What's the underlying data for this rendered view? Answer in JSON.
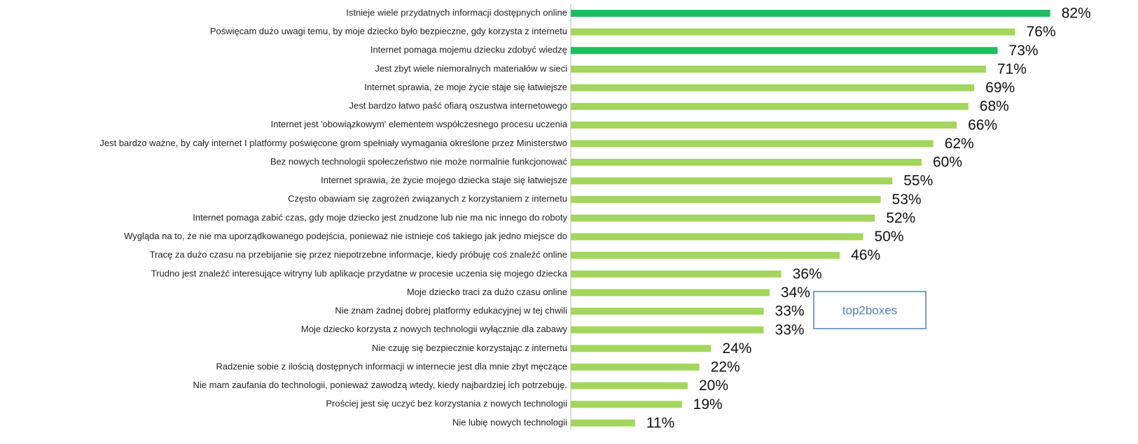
{
  "chart_data": {
    "type": "barh",
    "categories": [
      "Istnieje wiele przydatnych informacji dostępnych online",
      "Poświęcam dużo uwagi temu, by moje dziecko było bezpieczne, gdy korzysta z internetu",
      "Internet pomaga mojemu dziecku zdobyć wiedzę",
      "Jest zbyt wiele niemoralnych materiałów w sieci",
      "Internet sprawia, że moje życie staje się łatwiejsze",
      "Jest bardzo łatwo paść ofiarą oszustwa internetowego",
      "Internet jest 'obowiązkowym' elementem współczesnego procesu uczenia",
      "Jest bardzo ważne, by cały internet I platformy poświęcone grom spełniały wymagania określone przez Ministerstwo",
      "Bez nowych technologii społeczeństwo nie może normalnie funkcjonować",
      "Internet sprawia, że życie mojego dziecka staje się łatwiejsze",
      "Często obawiam się zagrożeń związanych z korzystaniem z internetu",
      "Internet pomaga zabić czas, gdy moje dziecko jest znudzone lub nie ma nic innego do roboty",
      "Wygląda na to, że nie ma uporządkowanego podejścia, ponieważ nie istnieje coś takiego jak jedno miejsce do",
      "Tracę za dużo czasu na przebijanie się przez niepotrzebne informacje, kiedy próbuję coś znaleźć online",
      "Trudno jest znaleźć interesujące witryny lub aplikacje przydatne w procesie uczenia się mojego dziecka",
      "Moje dziecko traci za dużo czasu online",
      "Nie znam żadnej dobrej platformy edukacyjnej w tej chwili",
      "Moje dziecko korzysta z nowych technologii wyłącznie dla zabawy",
      "Nie czuję się bezpiecznie korzystając z internetu",
      "Radzenie sobie z ilością dostępnych informacji w internecie jest dla mnie zbyt męczące",
      "Nie mam zaufania do technologii, ponieważ zawodzą wtedy, kiedy najbardziej ich potrzebuję.",
      "Prościej jest się uczyć bez korzystania z nowych technologii",
      "Nie lubię nowych technologii"
    ],
    "values": [
      82,
      76,
      73,
      71,
      69,
      68,
      66,
      62,
      60,
      55,
      53,
      52,
      50,
      46,
      36,
      34,
      33,
      33,
      24,
      22,
      20,
      19,
      11
    ],
    "value_labels": [
      "82%",
      "76%",
      "73%",
      "71%",
      "69%",
      "68%",
      "66%",
      "62%",
      "60%",
      "55%",
      "53%",
      "52%",
      "50%",
      "46%",
      "36%",
      "34%",
      "33%",
      "33%",
      "24%",
      "22%",
      "20%",
      "19%",
      "11%"
    ],
    "colors": [
      "#1dbe5e",
      "#a3d65c",
      "#1dbe5e",
      "#a3d65c",
      "#a3d65c",
      "#a3d65c",
      "#a3d65c",
      "#a3d65c",
      "#a3d65c",
      "#a3d65c",
      "#a3d65c",
      "#a3d65c",
      "#a3d65c",
      "#a3d65c",
      "#a3d65c",
      "#a3d65c",
      "#a3d65c",
      "#a3d65c",
      "#a3d65c",
      "#a3d65c",
      "#a3d65c",
      "#a3d65c",
      "#a3d65c"
    ],
    "xlim": [
      0,
      100
    ],
    "annotation": "top2boxes"
  }
}
